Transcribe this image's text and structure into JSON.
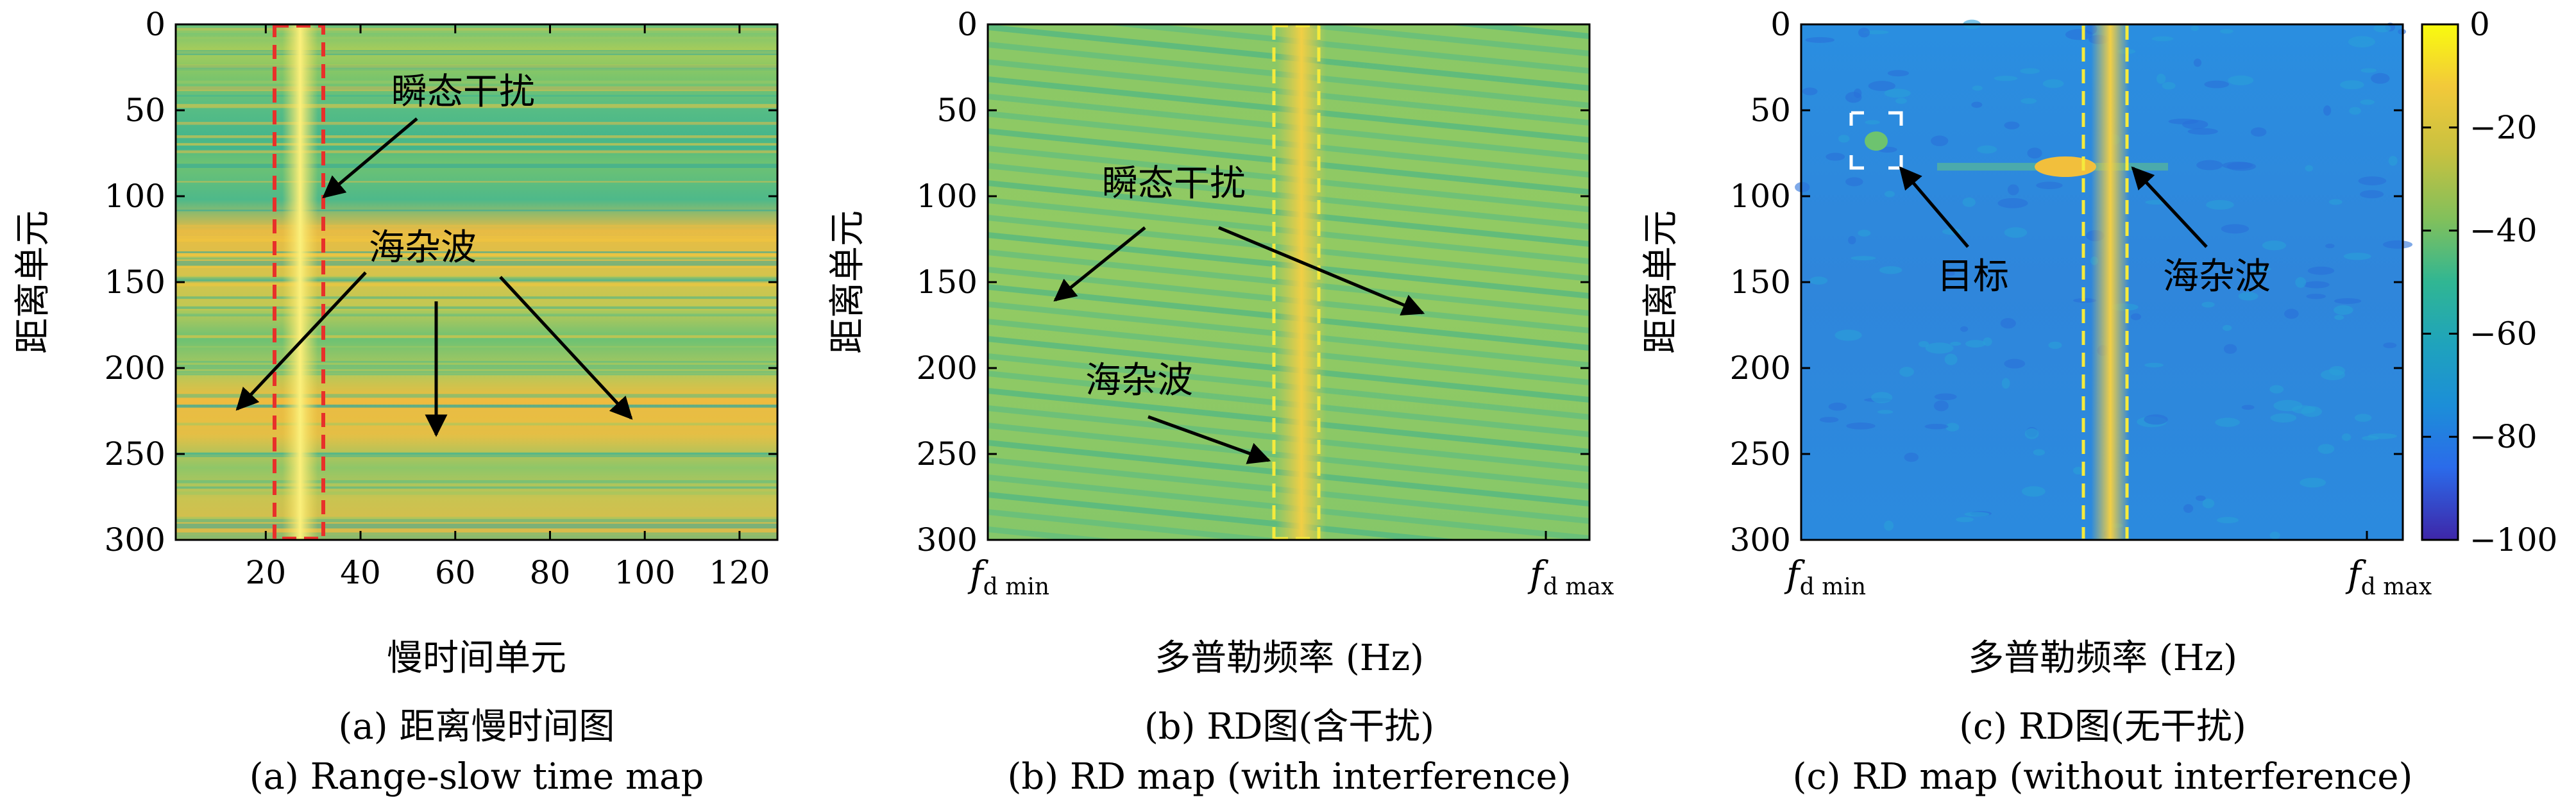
{
  "chart_data": [
    {
      "type": "heatmap",
      "ylabel": "距离单元",
      "xlabel": "慢时间单元",
      "xlim": [
        1,
        128
      ],
      "ylim": [
        0,
        300
      ],
      "x_ticks": [
        "20",
        "40",
        "60",
        "80",
        "100",
        "120"
      ],
      "y_ticks": [
        "0",
        "50",
        "100",
        "150",
        "200",
        "250",
        "300"
      ],
      "highlight_box_x": [
        22,
        32
      ],
      "interference_column_x": [
        25,
        29
      ],
      "annotations": [
        "瞬态干扰",
        "海杂波"
      ],
      "caption_zh": "(a) 距离慢时间图",
      "caption_en": "(a) Range-slow time map"
    },
    {
      "type": "heatmap",
      "ylabel": "距离单元",
      "xlabel": "多普勒频率 (Hz)",
      "ylim": [
        0,
        300
      ],
      "x_ticks": [
        "f",
        "f"
      ],
      "x_tick_subscripts": [
        "d min",
        "d max"
      ],
      "y_ticks": [
        "0",
        "50",
        "100",
        "150",
        "200",
        "250",
        "300"
      ],
      "annotations": [
        "瞬态干扰",
        "海杂波"
      ],
      "caption_zh": "(b) RD图(含干扰)",
      "caption_en": "(b) RD map (with interference)"
    },
    {
      "type": "heatmap",
      "ylabel": "距离单元",
      "xlabel": "多普勒频率 (Hz)",
      "ylim": [
        0,
        300
      ],
      "x_ticks": [
        "f",
        "f"
      ],
      "x_tick_subscripts": [
        "d min",
        "d max"
      ],
      "y_ticks": [
        "0",
        "50",
        "100",
        "150",
        "200",
        "250",
        "300"
      ],
      "target_range_cell": 70,
      "clutter_range_cell": 85,
      "annotations": [
        "目标",
        "海杂波"
      ],
      "colorbar": {
        "ticks": [
          "0",
          "−20",
          "−40",
          "−60",
          "−80",
          "−100"
        ],
        "range": [
          -100,
          0
        ]
      },
      "caption_zh": "(c) RD图(无干扰)",
      "caption_en": "(c) RD map (without interference)"
    }
  ],
  "colors": {
    "high": "#f9e721",
    "mid": "#21a586",
    "low": "#3d4ec2",
    "highlight_red": "#e8302a",
    "highlight_yellow": "#f5ea3c",
    "target_box": "#ffffff"
  }
}
